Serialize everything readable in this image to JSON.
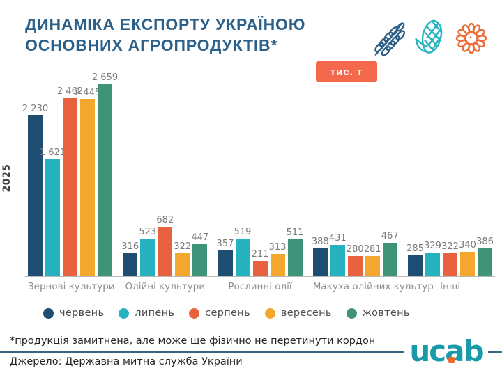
{
  "header": {
    "title_line1": "ДИНАМІКА ЕКСПОРТУ УКРАЇНОЮ",
    "title_line2": "ОСНОВНИХ АГРОПРОДУКТІВ*",
    "unit_badge": "тис. т",
    "icons": [
      "wheat-icon",
      "corn-icon",
      "sunflower-icon"
    ]
  },
  "chart_data": {
    "type": "bar",
    "title": "Динаміка експорту Україною основних агропродуктів",
    "unit": "тис. т",
    "ylabel": "2025",
    "grid": false,
    "legend_position": "bottom",
    "ylim": [
      0,
      2659
    ],
    "categories": [
      "Зернові культури",
      "Олійні культури",
      "Рослинні олії",
      "Макуха олійних культур",
      "Інші"
    ],
    "series": [
      {
        "name": "червень",
        "color": "#1f4e73",
        "values": [
          2230,
          316,
          357,
          388,
          285
        ]
      },
      {
        "name": "липень",
        "color": "#27b2bf",
        "values": [
          1621,
          523,
          519,
          431,
          329
        ]
      },
      {
        "name": "серпень",
        "color": "#e8623f",
        "values": [
          2462,
          682,
          211,
          280,
          322
        ]
      },
      {
        "name": "вересень",
        "color": "#f3a72f",
        "values": [
          2445,
          322,
          313,
          281,
          340
        ]
      },
      {
        "name": "жовтень",
        "color": "#3f9379",
        "values": [
          2659,
          447,
          511,
          467,
          386
        ]
      }
    ]
  },
  "footer": {
    "footnote": "*продукція замитнена, але може ще фізично не перетинути кордон",
    "source": "Джерело: Державна митна служба України",
    "logo_text": "ucab"
  },
  "colors": {
    "title": "#2b608a",
    "badge_bg": "#f4694c",
    "divider": "#39657f",
    "logo_teal": "#189aab",
    "logo_dot_orange": "#f2672f",
    "value_label": "#7b7b7b",
    "category_label": "#8d8d8d"
  }
}
